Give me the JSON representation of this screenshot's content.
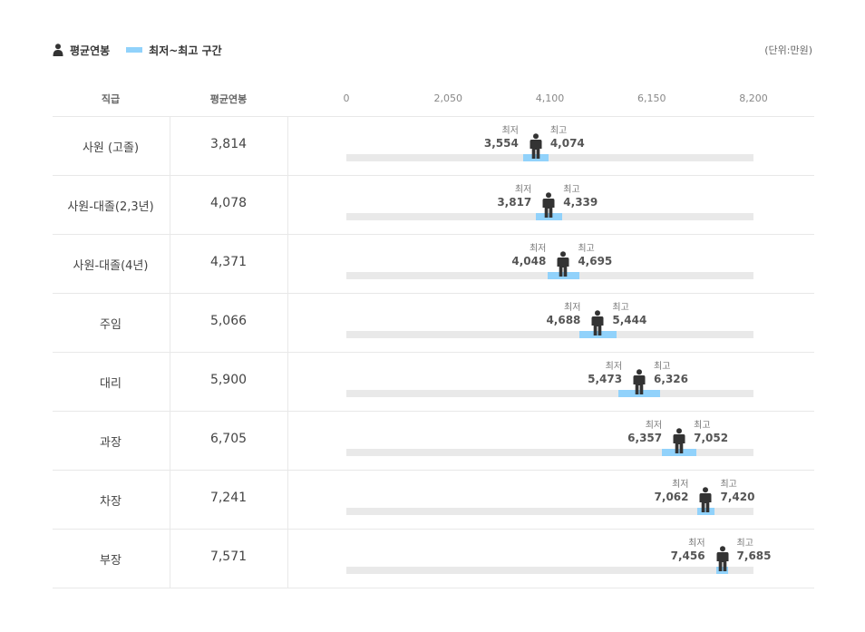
{
  "legend": {
    "avg_label": "평균연봉",
    "range_label": "최저~최고 구간",
    "person_icon": "person-icon",
    "range_color": "#91d2fb"
  },
  "unit": "(단위:만원)",
  "headers": {
    "rank": "직급",
    "avg": "평균연봉"
  },
  "captions": {
    "min": "최저",
    "max": "최고"
  },
  "colors": {
    "track": "#e9e9e9",
    "band": "#91d2fb",
    "person": "#333333"
  },
  "chart_data": {
    "type": "range-dot",
    "xlim": [
      0,
      8200
    ],
    "ticks": [
      "0",
      "2,050",
      "4,100",
      "6,150",
      "8,200"
    ],
    "tick_values": [
      0,
      2050,
      4100,
      6150,
      8200
    ],
    "rows": [
      {
        "rank": "사원 (고졸)",
        "avg": 3814,
        "avg_label": "3,814",
        "min": 3554,
        "min_label": "3,554",
        "max": 4074,
        "max_label": "4,074"
      },
      {
        "rank": "사원-대졸(2,3년)",
        "avg": 4078,
        "avg_label": "4,078",
        "min": 3817,
        "min_label": "3,817",
        "max": 4339,
        "max_label": "4,339"
      },
      {
        "rank": "사원-대졸(4년)",
        "avg": 4371,
        "avg_label": "4,371",
        "min": 4048,
        "min_label": "4,048",
        "max": 4695,
        "max_label": "4,695"
      },
      {
        "rank": "주임",
        "avg": 5066,
        "avg_label": "5,066",
        "min": 4688,
        "min_label": "4,688",
        "max": 5444,
        "max_label": "5,444"
      },
      {
        "rank": "대리",
        "avg": 5900,
        "avg_label": "5,900",
        "min": 5473,
        "min_label": "5,473",
        "max": 6326,
        "max_label": "6,326"
      },
      {
        "rank": "과장",
        "avg": 6705,
        "avg_label": "6,705",
        "min": 6357,
        "min_label": "6,357",
        "max": 7052,
        "max_label": "7,052"
      },
      {
        "rank": "차장",
        "avg": 7241,
        "avg_label": "7,241",
        "min": 7062,
        "min_label": "7,062",
        "max": 7420,
        "max_label": "7,420"
      },
      {
        "rank": "부장",
        "avg": 7571,
        "avg_label": "7,571",
        "min": 7456,
        "min_label": "7,456",
        "max": 7685,
        "max_label": "7,685"
      }
    ]
  }
}
